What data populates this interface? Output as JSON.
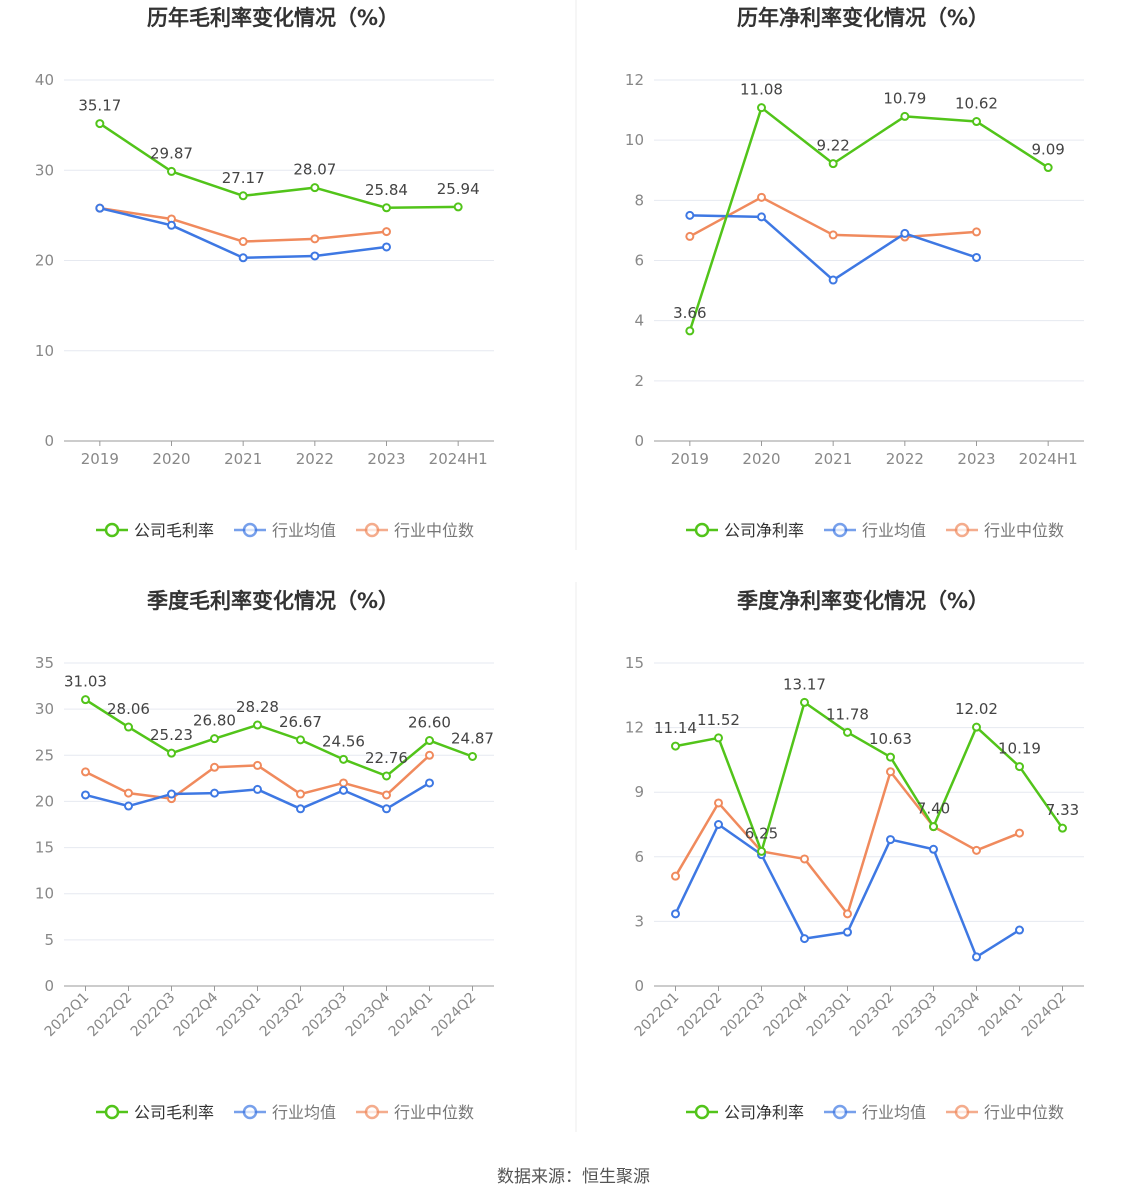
{
  "footer": "数据来源：恒生聚源",
  "colors": {
    "company": "#52c41a",
    "industry_avg": "#3e78e3",
    "industry_median": "#f08a5d",
    "grid": "#e6e9f0",
    "axis": "#999999",
    "tick_text": "#888888",
    "title": "#333333"
  },
  "chart_data": [
    {
      "type": "line",
      "title": "历年毛利率变化情况（%）",
      "categories": [
        "2019",
        "2020",
        "2021",
        "2022",
        "2023",
        "2024H1"
      ],
      "ylim": [
        0,
        40
      ],
      "yticks": [
        0,
        10,
        20,
        30,
        40
      ],
      "grid": true,
      "legend_position": "bottom",
      "series": [
        {
          "name": "公司毛利率",
          "color": "#52c41a",
          "labels": true,
          "values": [
            35.17,
            29.87,
            27.17,
            28.07,
            25.84,
            25.94
          ]
        },
        {
          "name": "行业均值",
          "color": "#3e78e3",
          "labels": false,
          "values": [
            25.8,
            23.9,
            20.3,
            20.5,
            21.5,
            null
          ]
        },
        {
          "name": "行业中位数",
          "color": "#f08a5d",
          "labels": false,
          "values": [
            25.8,
            24.6,
            22.1,
            22.4,
            23.2,
            null
          ]
        }
      ]
    },
    {
      "type": "line",
      "title": "历年净利率变化情况（%）",
      "categories": [
        "2019",
        "2020",
        "2021",
        "2022",
        "2023",
        "2024H1"
      ],
      "ylim": [
        0,
        12
      ],
      "yticks": [
        0,
        2,
        4,
        6,
        8,
        10,
        12
      ],
      "grid": true,
      "legend_position": "bottom",
      "series": [
        {
          "name": "公司净利率",
          "color": "#52c41a",
          "labels": true,
          "values": [
            3.66,
            11.08,
            9.22,
            10.79,
            10.62,
            9.09
          ]
        },
        {
          "name": "行业均值",
          "color": "#3e78e3",
          "labels": false,
          "values": [
            7.5,
            7.45,
            5.35,
            6.9,
            6.1,
            null
          ]
        },
        {
          "name": "行业中位数",
          "color": "#f08a5d",
          "labels": false,
          "values": [
            6.8,
            8.1,
            6.85,
            6.78,
            6.95,
            null
          ]
        }
      ]
    },
    {
      "type": "line",
      "title": "季度毛利率变化情况（%）",
      "categories": [
        "2022Q1",
        "2022Q2",
        "2022Q3",
        "2022Q4",
        "2023Q1",
        "2023Q2",
        "2023Q3",
        "2023Q4",
        "2024Q1",
        "2024Q2"
      ],
      "ylim": [
        0,
        35
      ],
      "yticks": [
        0,
        5,
        10,
        15,
        20,
        25,
        30,
        35
      ],
      "grid": true,
      "legend_position": "bottom",
      "series": [
        {
          "name": "公司毛利率",
          "color": "#52c41a",
          "labels": true,
          "values": [
            31.03,
            28.06,
            25.23,
            26.8,
            28.28,
            26.67,
            24.56,
            22.76,
            26.6,
            24.87
          ]
        },
        {
          "name": "行业均值",
          "color": "#3e78e3",
          "labels": false,
          "values": [
            20.7,
            19.5,
            20.8,
            20.9,
            21.3,
            19.2,
            21.2,
            19.2,
            22.0,
            null
          ]
        },
        {
          "name": "行业中位数",
          "color": "#f08a5d",
          "labels": false,
          "values": [
            23.2,
            20.9,
            20.3,
            23.7,
            23.9,
            20.8,
            22.0,
            20.7,
            25.0,
            null
          ]
        }
      ]
    },
    {
      "type": "line",
      "title": "季度净利率变化情况（%）",
      "categories": [
        "2022Q1",
        "2022Q2",
        "2022Q3",
        "2022Q4",
        "2023Q1",
        "2023Q2",
        "2023Q3",
        "2023Q4",
        "2024Q1",
        "2024Q2"
      ],
      "ylim": [
        0,
        15
      ],
      "yticks": [
        0,
        3,
        6,
        9,
        12,
        15
      ],
      "grid": true,
      "legend_position": "bottom",
      "series": [
        {
          "name": "公司净利率",
          "color": "#52c41a",
          "labels": true,
          "values": [
            11.14,
            11.52,
            6.25,
            13.17,
            11.78,
            10.63,
            7.4,
            12.02,
            10.19,
            7.33
          ]
        },
        {
          "name": "行业均值",
          "color": "#3e78e3",
          "labels": false,
          "values": [
            3.35,
            7.5,
            6.1,
            2.2,
            2.5,
            6.8,
            6.35,
            1.35,
            2.6,
            null
          ]
        },
        {
          "name": "行业中位数",
          "color": "#f08a5d",
          "labels": false,
          "values": [
            5.1,
            8.5,
            6.25,
            5.9,
            3.35,
            9.95,
            7.4,
            6.3,
            7.1,
            null
          ]
        }
      ]
    }
  ]
}
